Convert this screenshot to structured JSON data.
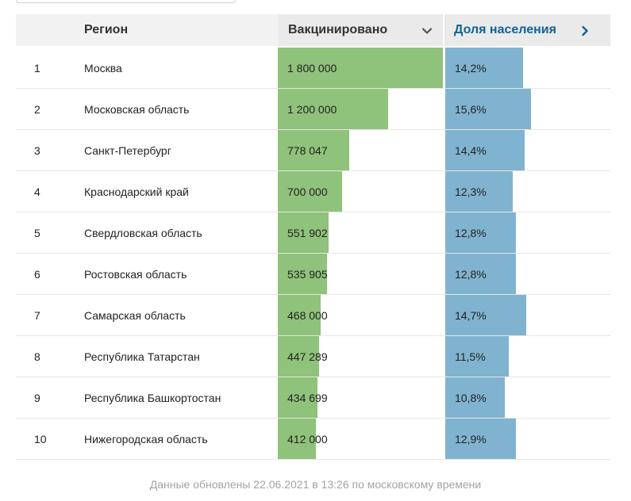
{
  "header": {
    "num": "",
    "region": "Регион",
    "vaccinated": "Вакцинировано",
    "share": "Доля населения",
    "sort_icon": "chevron-down-icon",
    "next_icon": "chevron-right-icon"
  },
  "chart_data": {
    "type": "table",
    "columns": [
      "",
      "Регион",
      "Вакцинировано",
      "Доля населения"
    ],
    "rows": [
      {
        "num": "1",
        "region": "Москва",
        "vaccinated_label": "1 800 000",
        "vaccinated": 1800000,
        "share_label": "14,2%",
        "share": 14.2
      },
      {
        "num": "2",
        "region": "Московская область",
        "vaccinated_label": "1 200 000",
        "vaccinated": 1200000,
        "share_label": "15,6%",
        "share": 15.6
      },
      {
        "num": "3",
        "region": "Санкт-Петербург",
        "vaccinated_label": "778 047",
        "vaccinated": 778047,
        "share_label": "14,4%",
        "share": 14.4
      },
      {
        "num": "4",
        "region": "Краснодарский край",
        "vaccinated_label": "700 000",
        "vaccinated": 700000,
        "share_label": "12,3%",
        "share": 12.3
      },
      {
        "num": "5",
        "region": "Свердловская область",
        "vaccinated_label": "551 902",
        "vaccinated": 551902,
        "share_label": "12,8%",
        "share": 12.8
      },
      {
        "num": "6",
        "region": "Ростовская область",
        "vaccinated_label": "535 905",
        "vaccinated": 535905,
        "share_label": "12,8%",
        "share": 12.8
      },
      {
        "num": "7",
        "region": "Самарская область",
        "vaccinated_label": "468 000",
        "vaccinated": 468000,
        "share_label": "14,7%",
        "share": 14.7
      },
      {
        "num": "8",
        "region": "Республика Татарстан",
        "vaccinated_label": "447 289",
        "vaccinated": 447289,
        "share_label": "11,5%",
        "share": 11.5
      },
      {
        "num": "9",
        "region": "Республика Башкортостан",
        "vaccinated_label": "434 699",
        "vaccinated": 434699,
        "share_label": "10,8%",
        "share": 10.8
      },
      {
        "num": "10",
        "region": "Нижегородская область",
        "vaccinated_label": "412 000",
        "vaccinated": 412000,
        "share_label": "12,9%",
        "share": 12.9
      }
    ],
    "vaccinated_max": 1800000,
    "share_max": 30,
    "colors": {
      "vaccinated_bar": "#8fc27a",
      "share_bar": "#80b3cf",
      "header_link": "#0f6399"
    }
  },
  "footer": {
    "text": "Данные обновлены 22.06.2021 в 13:26 по московскому времени"
  }
}
